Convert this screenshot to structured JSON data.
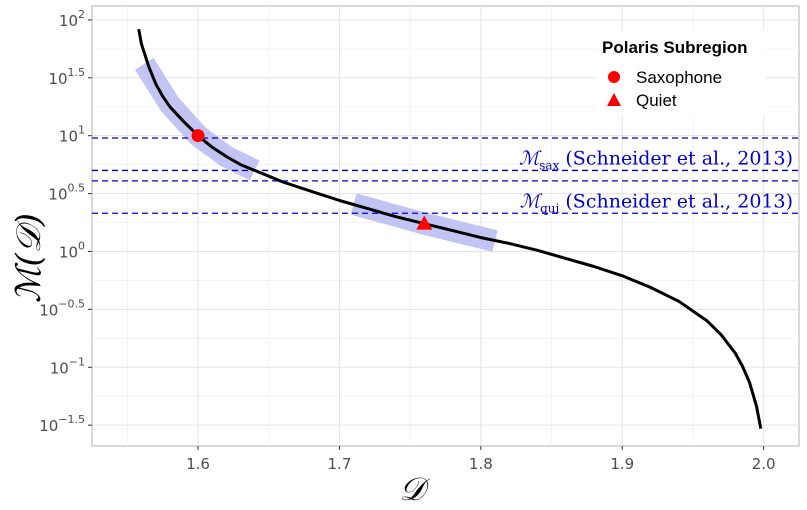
{
  "chart_data": {
    "type": "line",
    "xlabel": "𝒟",
    "ylabel": "ℳ(𝒟)",
    "xlim": [
      1.525,
      2.025
    ],
    "ylim": [
      -1.68,
      2.12
    ],
    "y_scale": "log10",
    "grid": true,
    "x_ticks": [
      1.6,
      1.7,
      1.8,
      1.9,
      2.0
    ],
    "x_tick_labels": [
      "1.6",
      "1.7",
      "1.8",
      "1.9",
      "2.0"
    ],
    "y_ticks": [
      {
        "exp": 2,
        "label_base": "10",
        "label_exp": "2"
      },
      {
        "exp": 1.5,
        "label_base": "10",
        "label_exp": "1.5"
      },
      {
        "exp": 1,
        "label_base": "10",
        "label_exp": "1"
      },
      {
        "exp": 0.5,
        "label_base": "10",
        "label_exp": "0.5"
      },
      {
        "exp": 0,
        "label_base": "10",
        "label_exp": "0"
      },
      {
        "exp": -0.5,
        "label_base": "10",
        "label_exp": "−0.5"
      },
      {
        "exp": -1,
        "label_base": "10",
        "label_exp": "−1"
      },
      {
        "exp": -1.5,
        "label_base": "10",
        "label_exp": "−1.5"
      }
    ],
    "curve": {
      "color": "#000000",
      "x": [
        1.558,
        1.56,
        1.565,
        1.57,
        1.575,
        1.58,
        1.59,
        1.6,
        1.61,
        1.62,
        1.63,
        1.64,
        1.65,
        1.66,
        1.68,
        1.7,
        1.72,
        1.74,
        1.76,
        1.78,
        1.8,
        1.82,
        1.84,
        1.86,
        1.88,
        1.9,
        1.92,
        1.94,
        1.96,
        1.97,
        1.98,
        1.985,
        1.99,
        1.995,
        1.998
      ],
      "log10_y": [
        1.92,
        1.79,
        1.6,
        1.45,
        1.34,
        1.25,
        1.12,
        1.0,
        0.9,
        0.82,
        0.75,
        0.7,
        0.65,
        0.6,
        0.52,
        0.44,
        0.37,
        0.3,
        0.24,
        0.18,
        0.12,
        0.07,
        0.01,
        -0.06,
        -0.13,
        -0.21,
        -0.31,
        -0.43,
        -0.6,
        -0.72,
        -0.88,
        -0.99,
        -1.13,
        -1.34,
        -1.53
      ]
    },
    "highlight_bands": [
      {
        "x": [
          1.562,
          1.58,
          1.6,
          1.62,
          1.64
        ],
        "log10_y": [
          1.62,
          1.27,
          1.0,
          0.82,
          0.7
        ]
      },
      {
        "x": [
          1.71,
          1.76,
          1.81
        ],
        "log10_y": [
          0.41,
          0.24,
          0.09
        ]
      }
    ],
    "band_color": "#c2c4f4",
    "points": [
      {
        "name": "Saxophone",
        "shape": "circle",
        "x": 1.6,
        "log10_y": 1.0,
        "color": "#ff0000"
      },
      {
        "name": "Quiet",
        "shape": "triangle",
        "x": 1.76,
        "log10_y": 0.24,
        "color": "#ff0000"
      }
    ],
    "reference_lines": [
      {
        "log10_y": 0.98,
        "color": "#0000cc"
      },
      {
        "log10_y": 0.7,
        "color": "#0000cc"
      },
      {
        "log10_y": 0.61,
        "color": "#0000cc"
      },
      {
        "log10_y": 0.33,
        "color": "#0000cc"
      }
    ],
    "reference_labels": [
      {
        "main": "ℳ",
        "sub": "sax",
        "text": " (Schneider et al., 2013)",
        "log10_y": 0.75
      },
      {
        "main": "ℳ",
        "sub": "qui",
        "text": " (Schneider et al., 2013)",
        "log10_y": 0.38
      }
    ],
    "legend": {
      "title": "Polaris Subregion",
      "entries": [
        "Saxophone",
        "Quiet"
      ],
      "placement": "top-right"
    }
  }
}
